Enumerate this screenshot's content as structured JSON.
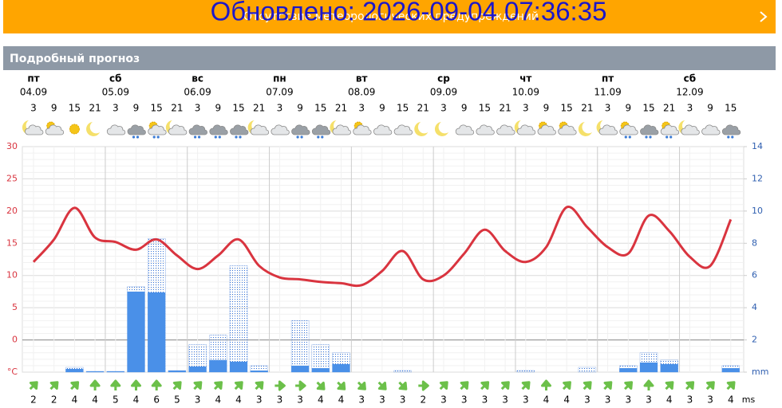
{
  "banner": {
    "message": "Отсутствие метеорологических предупреждений",
    "overlay": "Обновлено: 2026-09-04 07:36:35"
  },
  "section_title": "Подробный прогноз",
  "chart_data": {
    "type": "forecast",
    "days": [
      {
        "weekday": "пт",
        "date": "04.09"
      },
      {
        "weekday": "сб",
        "date": "05.09"
      },
      {
        "weekday": "вс",
        "date": "06.09"
      },
      {
        "weekday": "пн",
        "date": "07.09"
      },
      {
        "weekday": "вт",
        "date": "08.09"
      },
      {
        "weekday": "ср",
        "date": "09.09"
      },
      {
        "weekday": "чт",
        "date": "10.09"
      },
      {
        "weekday": "пт",
        "date": "11.09"
      },
      {
        "weekday": "сб",
        "date": "12.09"
      }
    ],
    "hours": [
      3,
      9,
      15,
      21,
      3,
      9,
      15,
      21,
      3,
      9,
      15,
      21,
      3,
      9,
      15,
      21,
      3,
      9,
      15,
      21,
      3,
      9,
      15,
      21,
      3,
      9,
      15,
      21,
      3,
      9,
      15,
      21,
      3,
      9,
      15
    ],
    "series": [
      {
        "name": "temperature",
        "color": "#d9343f",
        "values": [
          12.1,
          15.6,
          20.5,
          15.9,
          15.2,
          14,
          15.6,
          13.1,
          11,
          13.1,
          15.6,
          11.5,
          9.7,
          9.4,
          9,
          8.8,
          8.5,
          10.7,
          13.8,
          9.4,
          10,
          13.4,
          17.1,
          13.8,
          12.1,
          14.4,
          20.6,
          17.5,
          14.4,
          13.4,
          19.3,
          16.9,
          12.9,
          11.5,
          18.7
        ]
      },
      {
        "name": "precipitation-max",
        "color": "#2f6fd6",
        "axis": "y2",
        "values": [
          null,
          null,
          0.3,
          0.05,
          0.05,
          5.3,
          8.3,
          0.1,
          1.7,
          2.3,
          6.6,
          0.4,
          null,
          3.2,
          1.7,
          1.2,
          null,
          null,
          0.1,
          null,
          null,
          null,
          null,
          null,
          0.1,
          null,
          null,
          0.3,
          null,
          0.4,
          1.2,
          0.75,
          null,
          null,
          0.4
        ]
      },
      {
        "name": "precipitation",
        "color": "#4a90e8",
        "axis": "y2",
        "values": [
          null,
          null,
          0.2,
          0.05,
          0.05,
          5.0,
          4.95,
          0.1,
          0.35,
          0.75,
          0.65,
          0.1,
          null,
          0.4,
          0.25,
          0.5,
          null,
          null,
          null,
          null,
          null,
          null,
          null,
          null,
          null,
          null,
          null,
          null,
          null,
          0.25,
          0.6,
          0.5,
          null,
          null,
          0.25
        ]
      }
    ],
    "wind": [
      2,
      2,
      4,
      4,
      5,
      4,
      6,
      5,
      3,
      4,
      4,
      3,
      3,
      3,
      4,
      4,
      3,
      3,
      3,
      2,
      3,
      3,
      3,
      3,
      3,
      4,
      4,
      3,
      3,
      3,
      3,
      4,
      3,
      3,
      4
    ],
    "wind_unit": "ms",
    "ylim": [
      -5,
      30
    ],
    "yticks": [
      {
        "value": -5,
        "label": "°C"
      },
      0,
      5,
      10,
      15,
      20,
      25,
      30
    ],
    "y2lim": [
      0,
      14
    ],
    "y2ticks": [
      {
        "value": 0,
        "label": "mm"
      },
      2,
      4,
      6,
      8,
      10,
      12,
      14
    ],
    "grid": true
  }
}
